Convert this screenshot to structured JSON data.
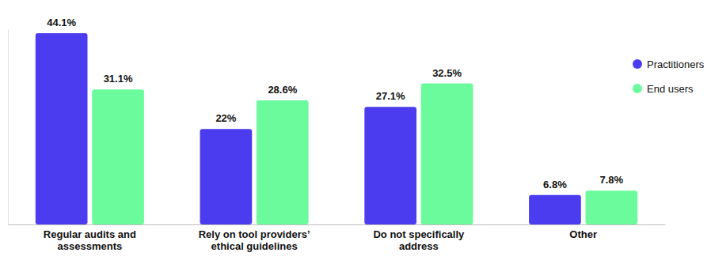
{
  "chart_data": {
    "type": "bar",
    "categories": [
      "Regular audits and assessments",
      "Rely on tool providers’ ethical guidelines",
      "Do not specifically address",
      "Other"
    ],
    "series": [
      {
        "name": "Practitioners",
        "color": "#4b3cf0",
        "values": [
          44.1,
          22,
          27.1,
          6.8
        ],
        "value_labels": [
          "44.1%",
          "22%",
          "27.1%",
          "6.8%"
        ]
      },
      {
        "name": "End users",
        "color": "#6cfb9c",
        "values": [
          31.1,
          28.6,
          32.5,
          7.8
        ],
        "value_labels": [
          "31.1%",
          "28.6%",
          "32.5%",
          "7.8%"
        ]
      }
    ],
    "ylim": [
      0,
      45
    ],
    "yticks": [],
    "grid": false,
    "legend": "upper right",
    "data_labels": true,
    "tick_labels": "x"
  }
}
